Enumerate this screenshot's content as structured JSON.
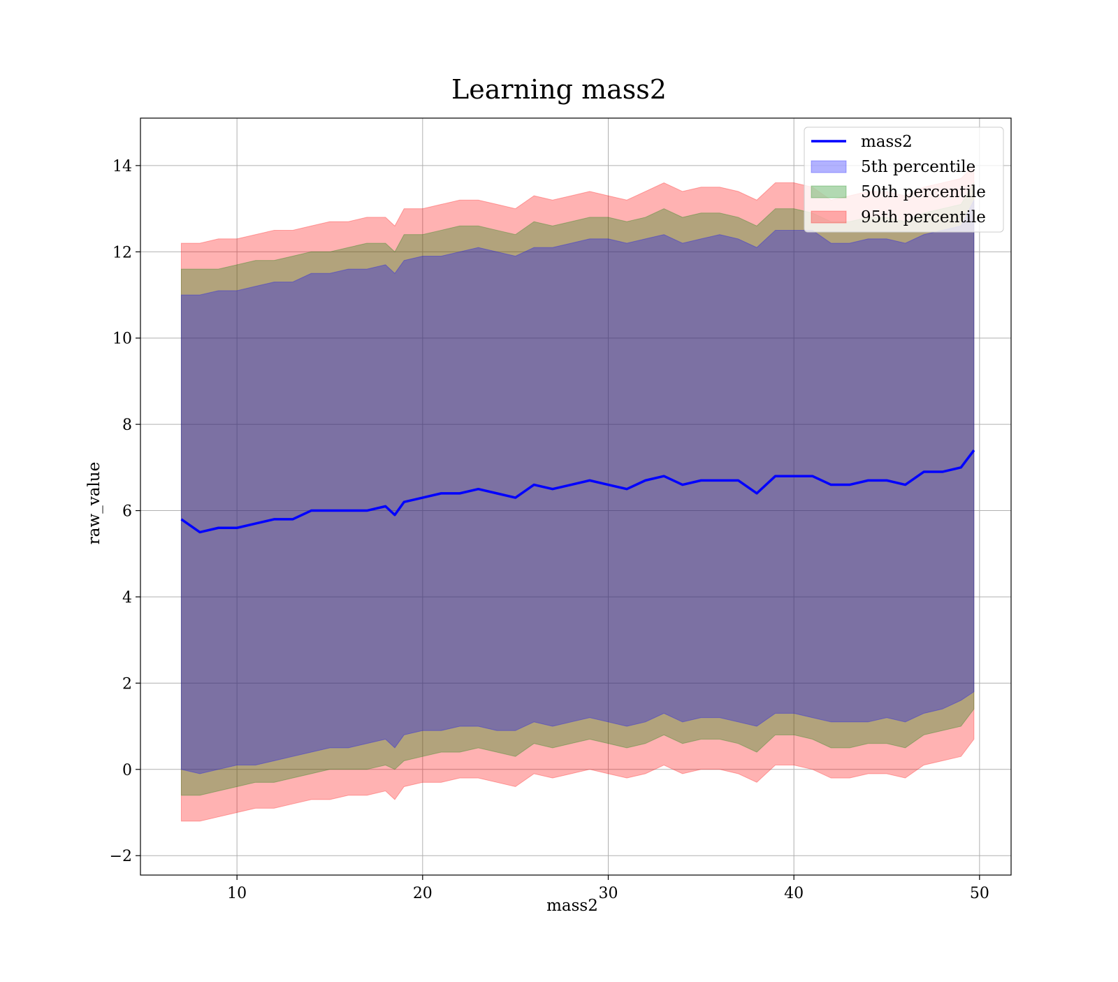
{
  "chart_data": {
    "type": "area",
    "title": "Learning mass2",
    "xlabel": "mass2",
    "ylabel": "raw_value",
    "xlim": [
      4.8,
      51.7
    ],
    "ylim": [
      -2.45,
      15.1
    ],
    "xticks": [
      10,
      20,
      30,
      40,
      50
    ],
    "xtick_labels": [
      "10",
      "20",
      "30",
      "40",
      "50"
    ],
    "yticks": [
      -2,
      0,
      2,
      4,
      6,
      8,
      10,
      12,
      14
    ],
    "ytick_labels": [
      "−2",
      "0",
      "2",
      "4",
      "6",
      "8",
      "10",
      "12",
      "14"
    ],
    "grid": true,
    "legend_position": "top-right",
    "legend": [
      {
        "label": "mass2",
        "kind": "line",
        "color": "#0000ff"
      },
      {
        "label": "5th percentile",
        "kind": "patch",
        "color": "#0000ff"
      },
      {
        "label": "50th percentile",
        "kind": "patch",
        "color": "#008000"
      },
      {
        "label": "95th percentile",
        "kind": "patch",
        "color": "#ff0000"
      }
    ],
    "x": [
      7.0,
      8.0,
      9.0,
      10.0,
      11.0,
      12.0,
      13.0,
      14.0,
      15.0,
      16.0,
      17.0,
      18.0,
      18.5,
      19.0,
      20.0,
      21.0,
      22.0,
      23.0,
      24.0,
      25.0,
      26.0,
      27.0,
      28.0,
      29.0,
      30.0,
      31.0,
      32.0,
      33.0,
      34.0,
      35.0,
      36.0,
      37.0,
      38.0,
      39.0,
      40.0,
      41.0,
      42.0,
      43.0,
      44.0,
      45.0,
      46.0,
      47.0,
      48.0,
      49.0,
      49.7
    ],
    "series": [
      {
        "name": "mass2",
        "role": "line",
        "color": "#0000ff",
        "values": [
          5.8,
          5.5,
          5.6,
          5.6,
          5.7,
          5.8,
          5.8,
          6.0,
          6.0,
          6.0,
          6.0,
          6.1,
          5.9,
          6.2,
          6.3,
          6.4,
          6.4,
          6.5,
          6.4,
          6.3,
          6.6,
          6.5,
          6.6,
          6.7,
          6.6,
          6.5,
          6.7,
          6.8,
          6.6,
          6.7,
          6.7,
          6.7,
          6.4,
          6.8,
          6.8,
          6.8,
          6.6,
          6.6,
          6.7,
          6.7,
          6.6,
          6.9,
          6.9,
          7.0,
          7.4
        ]
      },
      {
        "name": "5th percentile",
        "role": "band",
        "color": "#0000ff",
        "lower": [
          0.0,
          -0.1,
          0.0,
          0.1,
          0.1,
          0.2,
          0.3,
          0.4,
          0.5,
          0.5,
          0.6,
          0.7,
          0.5,
          0.8,
          0.9,
          0.9,
          1.0,
          1.0,
          0.9,
          0.9,
          1.1,
          1.0,
          1.1,
          1.2,
          1.1,
          1.0,
          1.1,
          1.3,
          1.1,
          1.2,
          1.2,
          1.1,
          1.0,
          1.3,
          1.3,
          1.2,
          1.1,
          1.1,
          1.1,
          1.2,
          1.1,
          1.3,
          1.4,
          1.6,
          1.8
        ],
        "upper": [
          11.0,
          11.0,
          11.1,
          11.1,
          11.2,
          11.3,
          11.3,
          11.5,
          11.5,
          11.6,
          11.6,
          11.7,
          11.5,
          11.8,
          11.9,
          11.9,
          12.0,
          12.1,
          12.0,
          11.9,
          12.1,
          12.1,
          12.2,
          12.3,
          12.3,
          12.2,
          12.3,
          12.4,
          12.2,
          12.3,
          12.4,
          12.3,
          12.1,
          12.5,
          12.5,
          12.5,
          12.2,
          12.2,
          12.3,
          12.3,
          12.2,
          12.4,
          12.5,
          12.6,
          13.2
        ]
      },
      {
        "name": "50th percentile",
        "role": "band",
        "color": "#008000",
        "lower": [
          -0.6,
          -0.6,
          -0.5,
          -0.4,
          -0.3,
          -0.3,
          -0.2,
          -0.1,
          0.0,
          0.0,
          0.0,
          0.1,
          0.0,
          0.2,
          0.3,
          0.4,
          0.4,
          0.5,
          0.4,
          0.3,
          0.6,
          0.5,
          0.6,
          0.7,
          0.6,
          0.5,
          0.6,
          0.8,
          0.6,
          0.7,
          0.7,
          0.6,
          0.4,
          0.8,
          0.8,
          0.7,
          0.5,
          0.5,
          0.6,
          0.6,
          0.5,
          0.8,
          0.9,
          1.0,
          1.4
        ],
        "upper": [
          11.6,
          11.6,
          11.6,
          11.7,
          11.8,
          11.8,
          11.9,
          12.0,
          12.0,
          12.1,
          12.2,
          12.2,
          12.0,
          12.4,
          12.4,
          12.5,
          12.6,
          12.6,
          12.5,
          12.4,
          12.7,
          12.6,
          12.7,
          12.8,
          12.8,
          12.7,
          12.8,
          13.0,
          12.8,
          12.9,
          12.9,
          12.8,
          12.6,
          13.0,
          13.0,
          12.9,
          12.7,
          12.7,
          12.8,
          12.8,
          12.7,
          12.9,
          13.0,
          13.1,
          13.6
        ]
      },
      {
        "name": "95th percentile",
        "role": "band",
        "color": "#ff0000",
        "lower": [
          -1.2,
          -1.2,
          -1.1,
          -1.0,
          -0.9,
          -0.9,
          -0.8,
          -0.7,
          -0.7,
          -0.6,
          -0.6,
          -0.5,
          -0.7,
          -0.4,
          -0.3,
          -0.3,
          -0.2,
          -0.2,
          -0.3,
          -0.4,
          -0.1,
          -0.2,
          -0.1,
          0.0,
          -0.1,
          -0.2,
          -0.1,
          0.1,
          -0.1,
          0.0,
          0.0,
          -0.1,
          -0.3,
          0.1,
          0.1,
          0.0,
          -0.2,
          -0.2,
          -0.1,
          -0.1,
          -0.2,
          0.1,
          0.2,
          0.3,
          0.7
        ],
        "upper": [
          12.2,
          12.2,
          12.3,
          12.3,
          12.4,
          12.5,
          12.5,
          12.6,
          12.7,
          12.7,
          12.8,
          12.8,
          12.6,
          13.0,
          13.0,
          13.1,
          13.2,
          13.2,
          13.1,
          13.0,
          13.3,
          13.2,
          13.3,
          13.4,
          13.3,
          13.2,
          13.4,
          13.6,
          13.4,
          13.5,
          13.5,
          13.4,
          13.2,
          13.6,
          13.6,
          13.5,
          13.2,
          13.3,
          13.4,
          13.4,
          13.3,
          13.5,
          13.6,
          13.7,
          14.0
        ]
      }
    ]
  }
}
